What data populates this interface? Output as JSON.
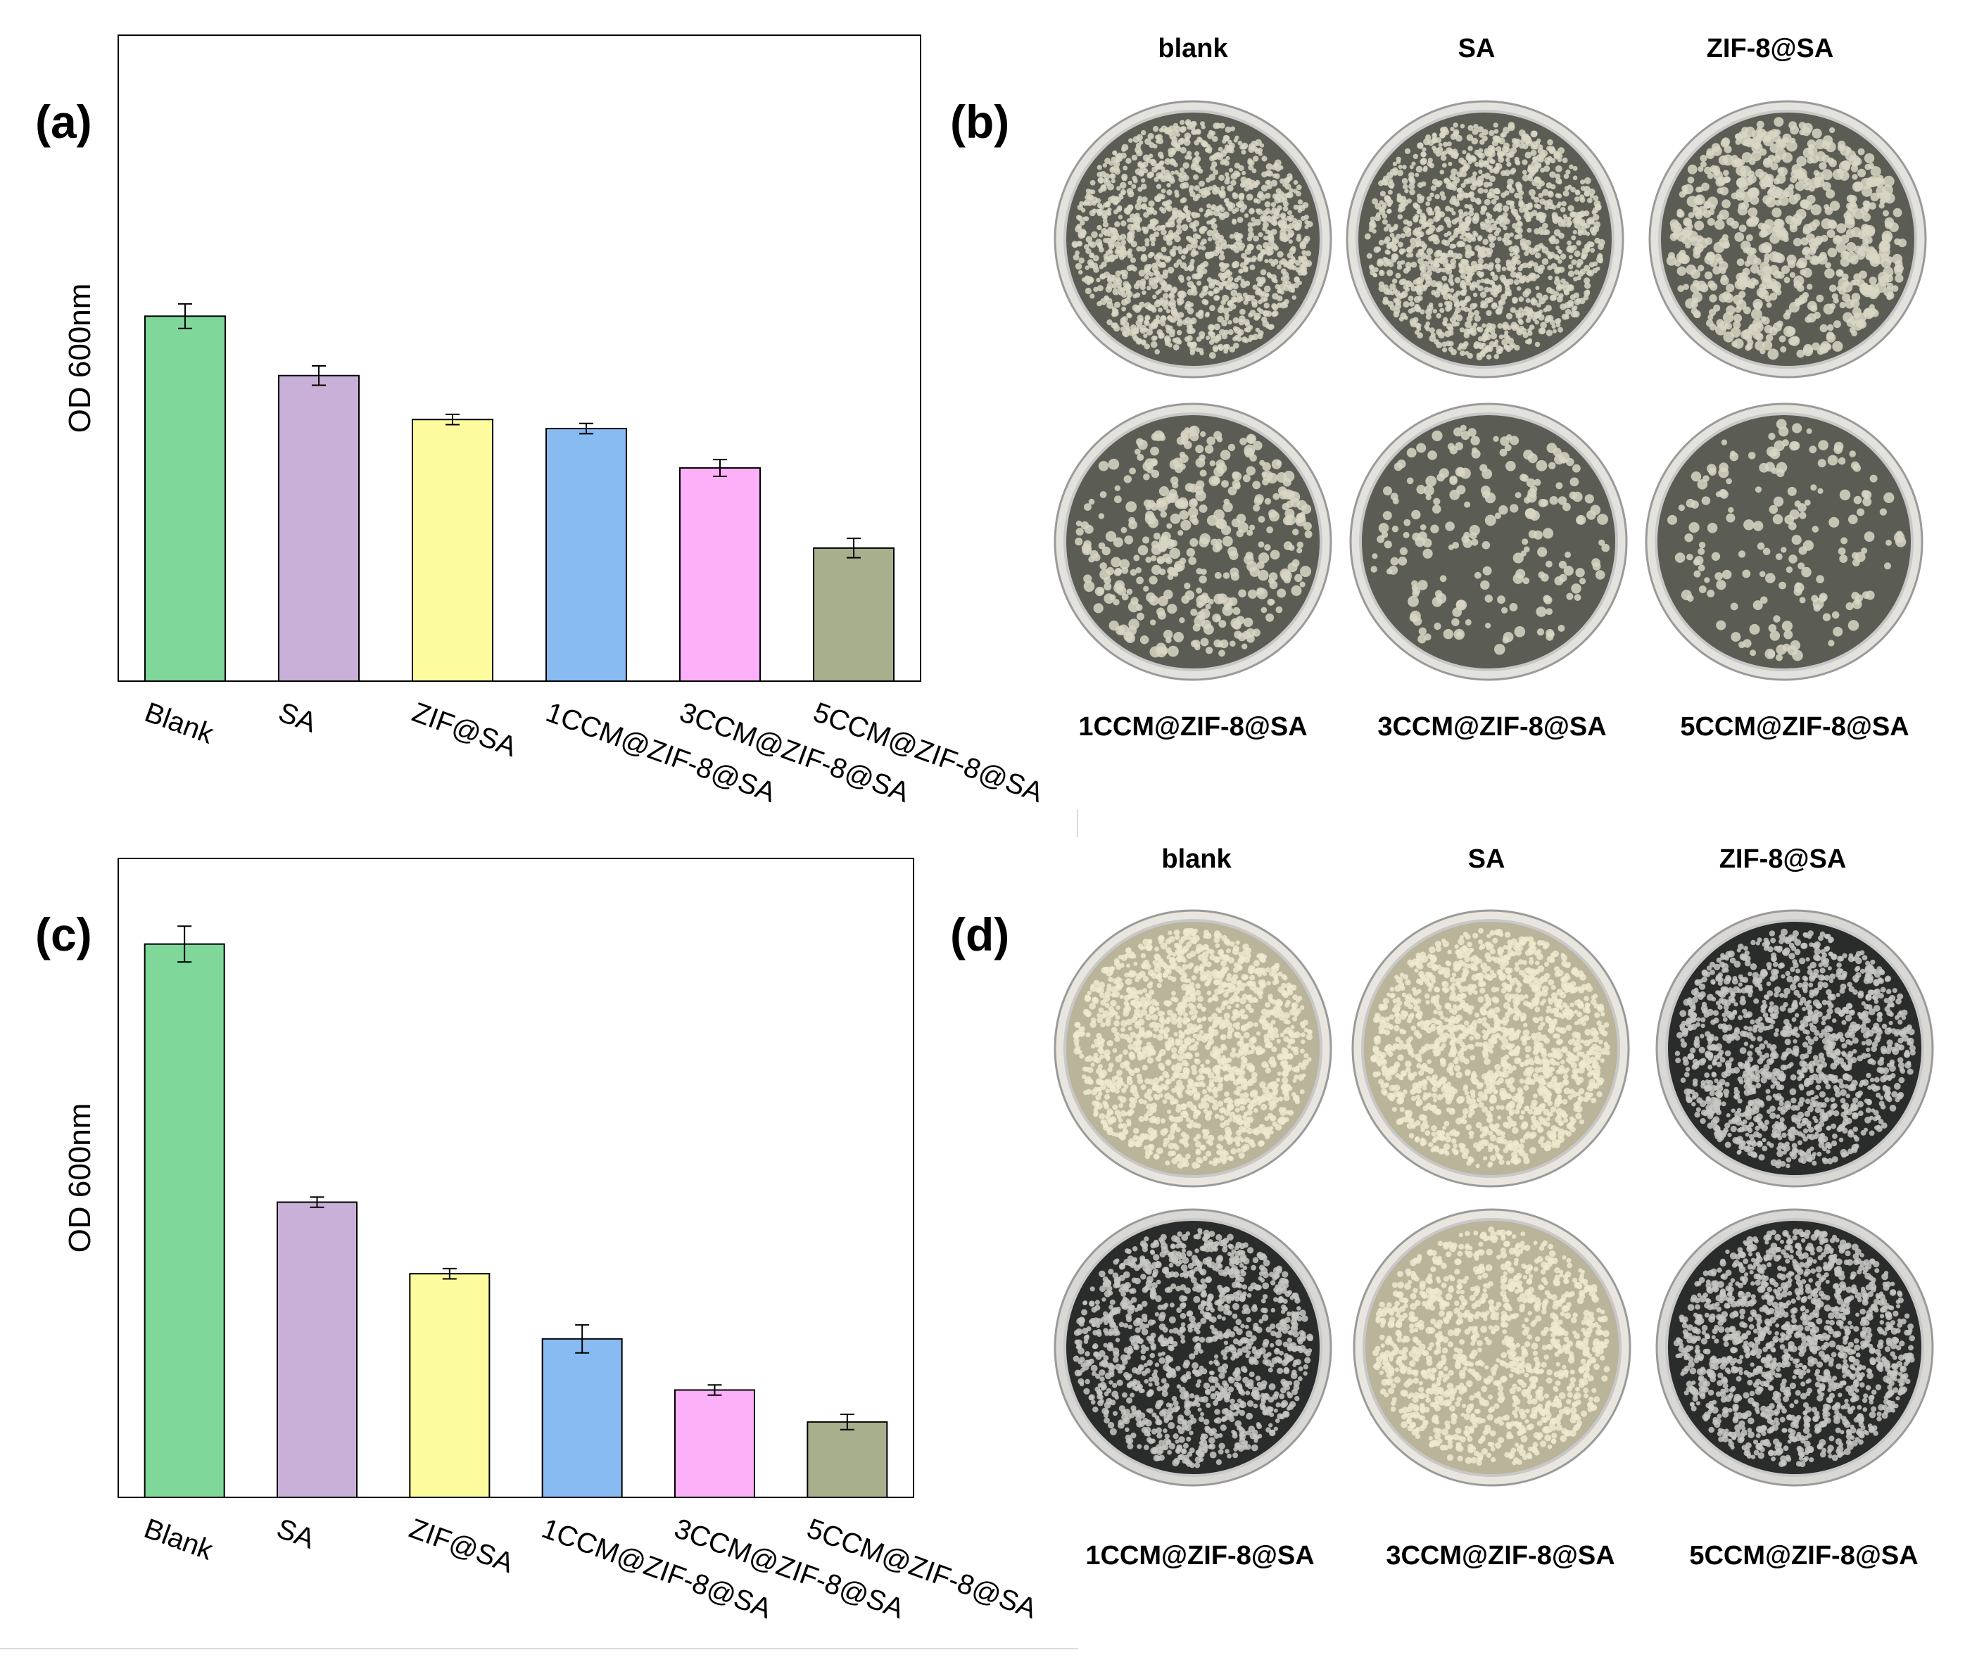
{
  "panels": {
    "a": "(a)",
    "b": "(b)",
    "c": "(c)",
    "d": "(d)"
  },
  "chart_data": [
    {
      "id": "a",
      "type": "bar",
      "ylabel": "OD 600nm",
      "categories": [
        "Blank",
        "SA",
        "ZIF@SA",
        "1CCM@ZIF-8@SA",
        "3CCM@ZIF-8@SA",
        "5CCM@ZIF-8@SA"
      ],
      "values": [
        0.565,
        0.473,
        0.405,
        0.391,
        0.33,
        0.206
      ],
      "errors": [
        0.019,
        0.015,
        0.008,
        0.008,
        0.013,
        0.015
      ],
      "colors": [
        "#7fd89a",
        "#c9b0d8",
        "#fcfc9e",
        "#88bbf2",
        "#fcb0f8",
        "#a7af8c"
      ],
      "ylim": [
        0,
        1.0
      ],
      "grid": false
    },
    {
      "id": "c",
      "type": "bar",
      "ylabel": "OD 600nm",
      "categories": [
        "Blank",
        "SA",
        "ZIF@SA",
        "1CCM@ZIF-8@SA",
        "3CCM@ZIF-8@SA",
        "5CCM@ZIF-8@SA"
      ],
      "values": [
        0.866,
        0.462,
        0.35,
        0.248,
        0.168,
        0.118
      ],
      "errors": [
        0.028,
        0.008,
        0.008,
        0.022,
        0.008,
        0.012
      ],
      "colors": [
        "#7fd89a",
        "#c9b0d8",
        "#fcfc9e",
        "#88bbf2",
        "#fcb0f8",
        "#a7af8c"
      ],
      "ylim": [
        0,
        1.0
      ],
      "grid": false
    }
  ],
  "dishes_b": {
    "top": [
      "blank",
      "SA",
      "ZIF-8@SA"
    ],
    "bottom": [
      "1CCM@ZIF-8@SA",
      "3CCM@ZIF-8@SA",
      "5CCM@ZIF-8@SA"
    ],
    "colony_coverage": [
      0.95,
      0.95,
      0.45,
      0.25,
      0.12,
      0.1
    ]
  },
  "dishes_d": {
    "top": [
      "blank",
      "SA",
      "ZIF-8@SA"
    ],
    "bottom": [
      "1CCM@ZIF-8@SA",
      "3CCM@ZIF-8@SA",
      "5CCM@ZIF-8@SA"
    ],
    "colony_coverage": [
      1.0,
      1.0,
      0.9,
      0.85,
      0.8,
      0.95
    ]
  }
}
